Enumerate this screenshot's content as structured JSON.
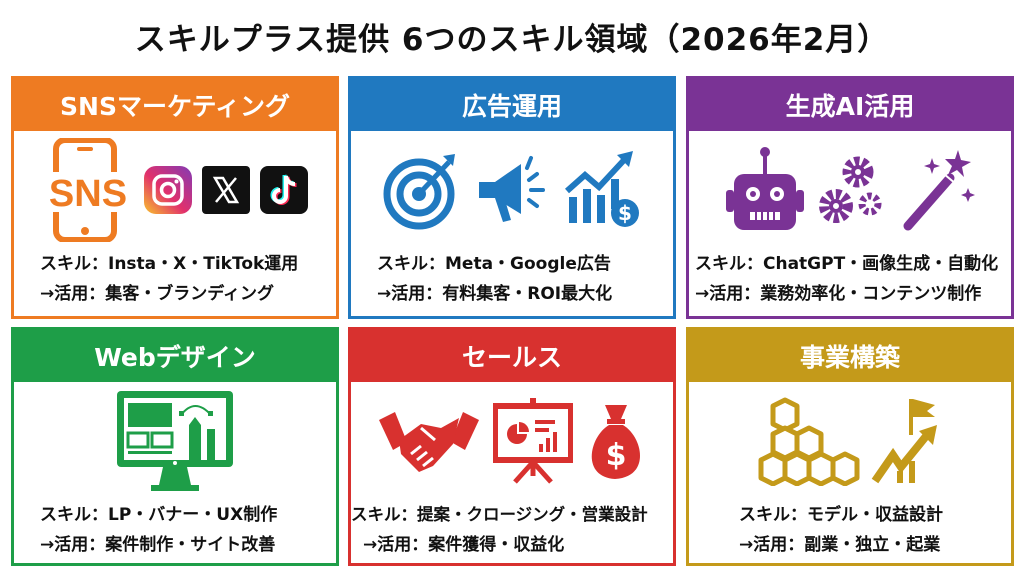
{
  "title": "スキルプラス提供 6つのスキル領域（2026年2月）",
  "cards": [
    {
      "heading": "SNSマーケティング",
      "color": "#EE7B22",
      "skill": "スキル：Insta・X・TikTok運用",
      "use": "→活用：集客・ブランディング",
      "icons": [
        "smartphone-sns-icon",
        "instagram-icon",
        "x-icon",
        "tiktok-icon"
      ],
      "sns_label": "SNS"
    },
    {
      "heading": "広告運用",
      "color": "#2079C0",
      "skill": "スキル：Meta・Google広告",
      "use": "→活用：有料集客・ROI最大化",
      "icons": [
        "target-icon",
        "megaphone-icon",
        "growth-chart-dollar-icon"
      ]
    },
    {
      "heading": "生成AI活用",
      "color": "#7A3395",
      "skill": "スキル：ChatGPT・画像生成・自動化",
      "use": "→活用：業務効率化・コンテンツ制作",
      "icons": [
        "robot-icon",
        "gears-icon",
        "magic-wand-icon"
      ]
    },
    {
      "heading": "Webデザイン",
      "color": "#1E9E48",
      "skill": "スキル：LP・バナー・UX制作",
      "use": "→活用：案件制作・サイト改善",
      "icons": [
        "monitor-design-icon"
      ]
    },
    {
      "heading": "セールス",
      "color": "#D8312F",
      "skill": "スキル：提案・クロージング・営業設計",
      "use": "→活用：案件獲得・収益化",
      "icons": [
        "handshake-icon",
        "presentation-icon",
        "money-bag-icon"
      ]
    },
    {
      "heading": "事業構築",
      "color": "#C49A1A",
      "skill": "スキル：モデル・収益設計",
      "use": "→活用：副業・独立・起業",
      "icons": [
        "blocks-icon",
        "growth-flag-icon"
      ]
    }
  ]
}
